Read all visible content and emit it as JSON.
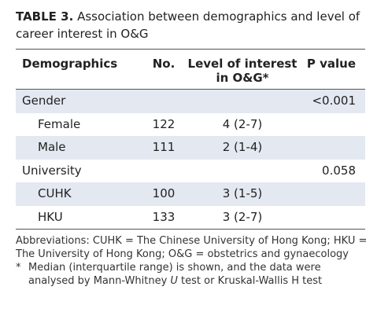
{
  "title": {
    "label": "TABLE 3.",
    "text": "Association between demographics and level of career interest in O&G"
  },
  "table": {
    "headers": [
      "Demographics",
      "No.",
      "Level of interest in O&G*",
      "P value"
    ],
    "groups": [
      {
        "label": "Gender",
        "p_value": "<0.001",
        "items": [
          {
            "label": "Female",
            "no": "122",
            "level": "4 (2-7)"
          },
          {
            "label": "Male",
            "no": "111",
            "level": "2 (1-4)"
          }
        ]
      },
      {
        "label": "University",
        "p_value": "0.058",
        "items": [
          {
            "label": "CUHK",
            "no": "100",
            "level": "3 (1-5)"
          },
          {
            "label": "HKU",
            "no": "133",
            "level": "3 (2-7)"
          }
        ]
      }
    ]
  },
  "footnotes": {
    "abbreviations": "Abbreviations: CUHK = The Chinese University of Hong Kong; HKU = The University of Hong Kong; O&G = obstetrics and gynaecology",
    "marker": "*",
    "note_before": "Median (interquartile range) is shown, and the data were analysed by Mann-Whitney ",
    "note_italic": "U",
    "note_after": " test or Kruskal-Wallis H test"
  }
}
